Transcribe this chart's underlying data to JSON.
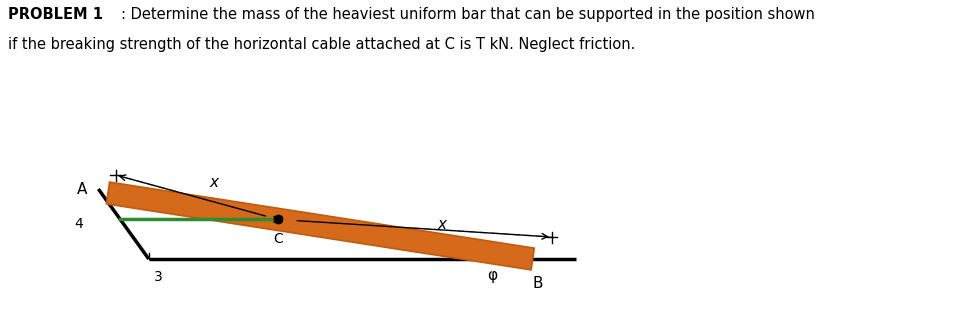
{
  "bg_color": "#ffffff",
  "bar_color": "#d46a1a",
  "bar_edge_color": "#c05a10",
  "green_cable_color": "#2e8b2e",
  "dashed_color": "#888888",
  "label_phi": "φ",
  "figsize": [
    9.71,
    3.09
  ],
  "dpi": 100,
  "title_bold": "PROBLEM 1",
  "title_rest": ": Determine the mass of the heaviest uniform bar that can be supported in the position shown",
  "subtitle": "if the breaking strength of the horizontal cable attached at C is T kN. Neglect friction."
}
